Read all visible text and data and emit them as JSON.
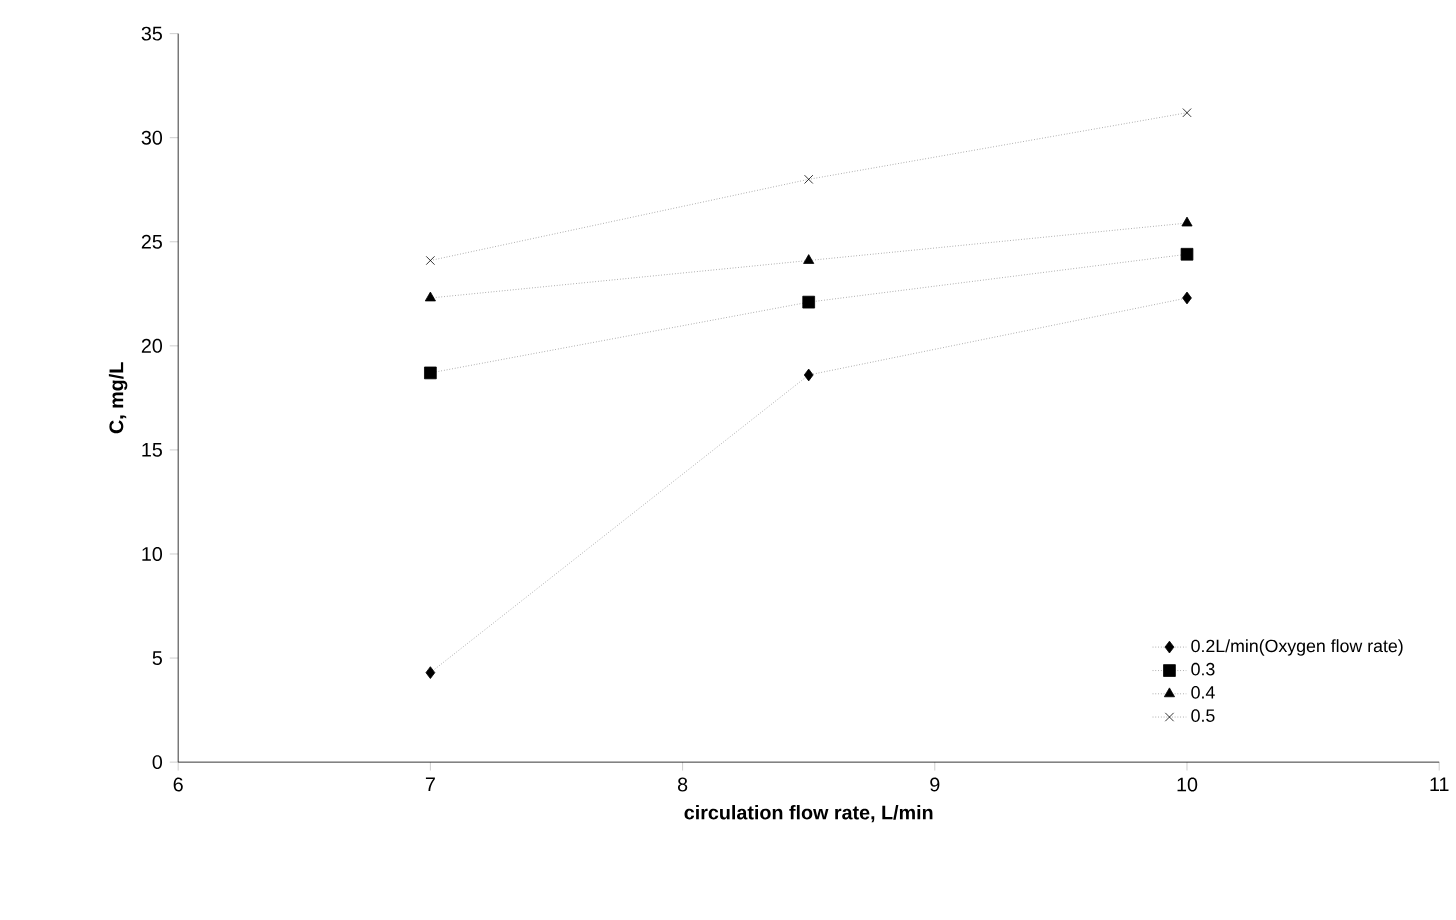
{
  "chart_data": {
    "type": "line",
    "xlabel": "circulation flow rate, L/min",
    "ylabel": "C, mg/L",
    "x": [
      7,
      8.5,
      10
    ],
    "series": [
      {
        "name": "0.2L/min(Oxygen flow rate)",
        "color": "#000000",
        "marker": "diamond",
        "values": [
          4.3,
          18.6,
          22.3
        ]
      },
      {
        "name": "0.3",
        "color": "#000000",
        "marker": "square",
        "values": [
          18.7,
          22.1,
          24.4
        ]
      },
      {
        "name": "0.4",
        "color": "#000000",
        "marker": "triangle",
        "values": [
          22.3,
          24.1,
          25.9
        ]
      },
      {
        "name": "0.5",
        "color": "#000000",
        "marker": "cross",
        "values": [
          24.1,
          28.0,
          31.2
        ]
      }
    ],
    "xlim": [
      6,
      11
    ],
    "xticks": [
      6,
      7,
      8,
      9,
      10,
      11
    ],
    "ylim": [
      0,
      35
    ],
    "yticks": [
      0,
      5,
      10,
      15,
      20,
      25,
      30,
      35
    ],
    "line_style": "dotted",
    "legend": "bottom right",
    "grid": false
  }
}
